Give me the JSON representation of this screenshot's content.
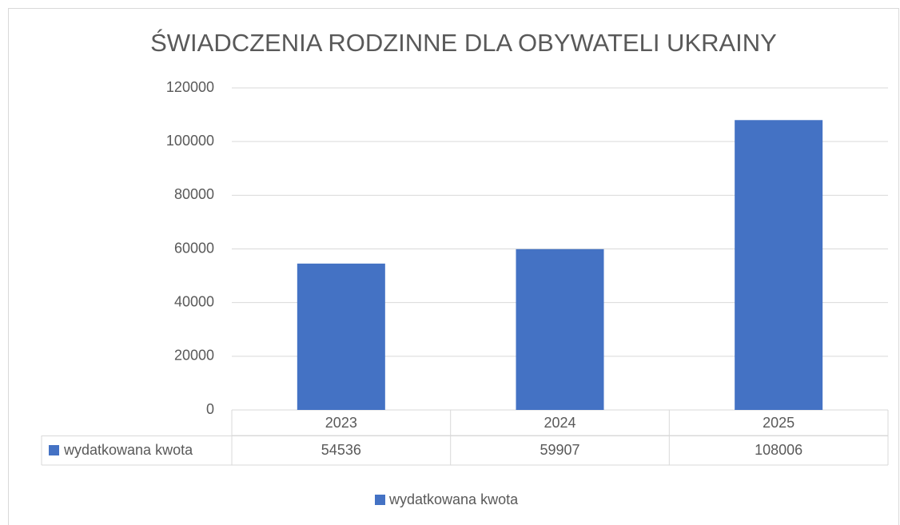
{
  "chart_data": {
    "type": "bar",
    "title": "ŚWIADCZENIA RODZINNE DLA OBYWATELI UKRAINY",
    "categories": [
      "2023",
      "2024",
      "2025"
    ],
    "series": [
      {
        "name": "wydatkowana kwota",
        "color": "#4472c4",
        "values": [
          54536,
          59907,
          108006
        ]
      }
    ],
    "ylim": [
      0,
      120000
    ],
    "yticks": [
      0,
      20000,
      40000,
      60000,
      80000,
      100000,
      120000
    ],
    "grid": true,
    "legend": "bottom"
  }
}
